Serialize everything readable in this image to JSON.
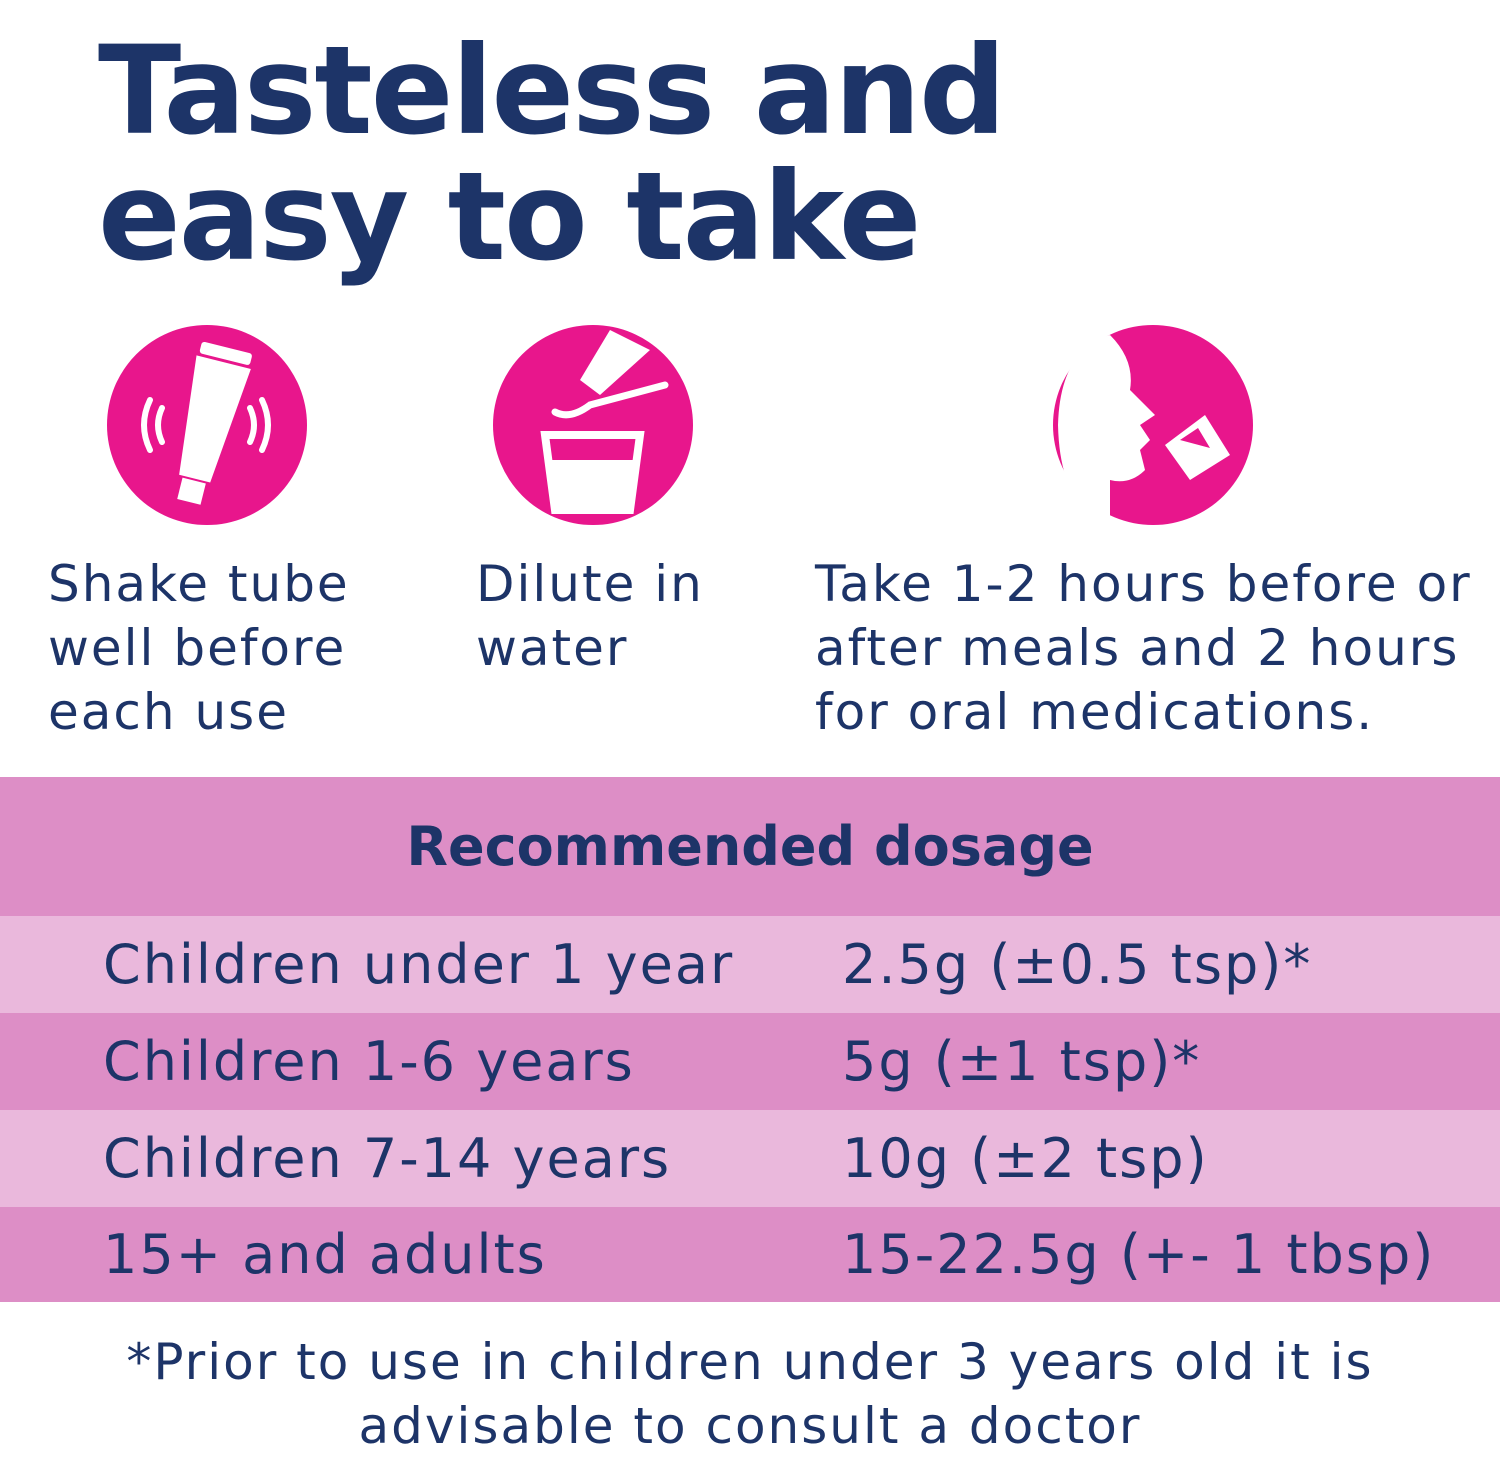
{
  "header": {
    "title": "Tasteless and easy to take"
  },
  "steps": [
    {
      "label": "Shake tube well before each use"
    },
    {
      "label": "Dilute in water"
    },
    {
      "label": "Take 1-2 hours before or after meals and 2 hours for oral medications."
    }
  ],
  "table": {
    "title": "Recommended dosage",
    "rows": [
      [
        "Children under 1 year",
        "2.5g (±0.5 tsp)*"
      ],
      [
        "Children 1-6 years",
        "5g (±1 tsp)*"
      ],
      [
        "Children 7-14 years",
        "10g (±2 tsp)"
      ],
      [
        "15+ and adults",
        "15-22.5g (+- 1 tbsp)"
      ]
    ]
  },
  "footnote": "*Prior to use in children under 3 years old it is advisable to consult a doctor"
}
